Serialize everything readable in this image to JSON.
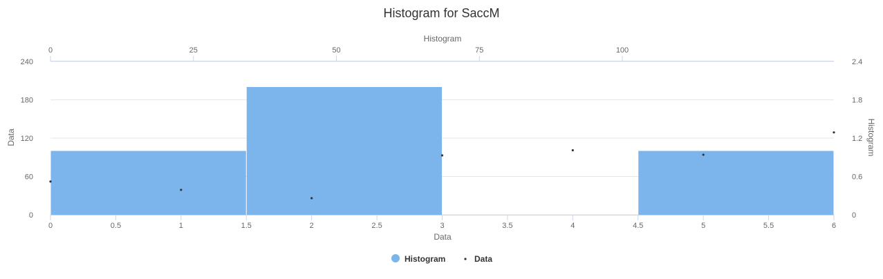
{
  "chart_data": {
    "type": "bar",
    "title": "Histogram for SaccM",
    "series": [
      {
        "name": "Histogram",
        "type": "histogram",
        "color": "#7cb5ec",
        "bins": [
          {
            "x0": 0,
            "x1": 1.5,
            "y": 1.0
          },
          {
            "x0": 1.5,
            "x1": 3,
            "y": 2.0
          },
          {
            "x0": 3,
            "x1": 4.5,
            "y": 0
          },
          {
            "x0": 4.5,
            "x1": 6,
            "y": 1.0
          }
        ]
      },
      {
        "name": "Data",
        "type": "scatter",
        "color": "#333333",
        "points": [
          {
            "x": 0,
            "y": 52
          },
          {
            "x": 1,
            "y": 39
          },
          {
            "x": 2,
            "y": 26
          },
          {
            "x": 3,
            "y": 93
          },
          {
            "x": 4,
            "y": 101
          },
          {
            "x": 5,
            "y": 94
          },
          {
            "x": 6,
            "y": 129
          }
        ]
      }
    ],
    "axes": {
      "x_bottom": {
        "title": "Data",
        "range": [
          0,
          6
        ],
        "ticks": [
          "0",
          "0.5",
          "1",
          "1.5",
          "2",
          "2.5",
          "3",
          "3.5",
          "4",
          "4.5",
          "5",
          "5.5",
          "6"
        ]
      },
      "x_top": {
        "title": "Histogram",
        "range": [
          0,
          137
        ],
        "ticks": [
          "0",
          "25",
          "50",
          "75",
          "100"
        ]
      },
      "y_left": {
        "title": "Data",
        "range": [
          0,
          240
        ],
        "ticks": [
          "0",
          "60",
          "120",
          "180",
          "240"
        ]
      },
      "y_right": {
        "title": "Histogram",
        "range": [
          0,
          2.4
        ],
        "ticks": [
          "0",
          "0.6",
          "1.2",
          "1.8",
          "2.4"
        ]
      }
    },
    "grid": true,
    "legend": {
      "placement": "bottom-center",
      "items": [
        "Histogram",
        "Data"
      ]
    }
  }
}
